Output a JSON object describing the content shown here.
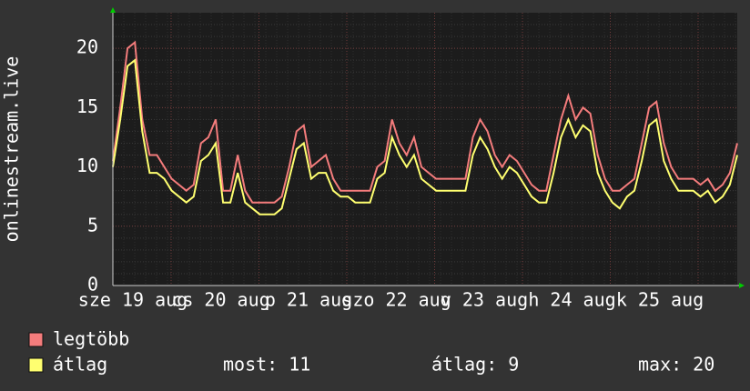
{
  "chart_data": {
    "type": "line",
    "y_label": "onlinestream.live",
    "x_labels": [
      "sze 19 aug",
      "cs 20 aug",
      "p 21 aug",
      "szo 22 aug",
      "v 23 aug",
      "h 24 aug",
      "k 25 aug"
    ],
    "ylim": [
      0,
      23
    ],
    "yticks": [
      0,
      5,
      10,
      15,
      20
    ],
    "grid": true,
    "series": [
      {
        "name": "legtöbb",
        "color": "#f47c7c",
        "values": [
          10.5,
          15,
          20,
          20.5,
          14,
          11,
          11,
          10,
          9,
          8.5,
          8,
          8.5,
          12,
          12.5,
          14,
          8,
          8,
          11,
          8,
          7,
          7,
          7,
          7,
          7.5,
          10,
          13,
          13.5,
          10,
          10.5,
          11,
          9,
          8,
          8,
          8,
          8,
          8,
          10,
          10.5,
          14,
          12,
          11,
          12.5,
          10,
          9.5,
          9,
          9,
          9,
          9,
          9,
          12.5,
          14,
          13,
          11,
          10,
          11,
          10.5,
          9.5,
          8.5,
          8,
          8,
          11,
          14,
          16,
          14,
          15,
          14.5,
          11,
          9,
          8,
          8,
          8.5,
          9,
          12,
          15,
          15.5,
          12,
          10,
          9,
          9,
          9,
          8.5,
          9,
          8,
          8.5,
          9.5,
          12
        ]
      },
      {
        "name": "átlag",
        "color": "#ffff70",
        "values": [
          10,
          14,
          18.5,
          19,
          13,
          9.5,
          9.5,
          9,
          8,
          7.5,
          7,
          7.5,
          10.5,
          11,
          12,
          7,
          7,
          9.5,
          7,
          6.5,
          6,
          6,
          6,
          6.5,
          9,
          11.5,
          12,
          9,
          9.5,
          9.5,
          8,
          7.5,
          7.5,
          7,
          7,
          7,
          9,
          9.5,
          12.5,
          11,
          10,
          11,
          9,
          8.5,
          8,
          8,
          8,
          8,
          8,
          11,
          12.5,
          11.5,
          10,
          9,
          10,
          9.5,
          8.5,
          7.5,
          7,
          7,
          9.5,
          12.5,
          14,
          12.5,
          13.5,
          13,
          9.5,
          8,
          7,
          6.5,
          7.5,
          8,
          10.5,
          13.5,
          14,
          10.5,
          9,
          8,
          8,
          8,
          7.5,
          8,
          7,
          7.5,
          8.5,
          11
        ]
      }
    ],
    "legend_stats": [
      {
        "label": "most:",
        "value": 11
      },
      {
        "label": "átlag:",
        "value": 9
      },
      {
        "label": "max:",
        "value": 20
      }
    ]
  }
}
